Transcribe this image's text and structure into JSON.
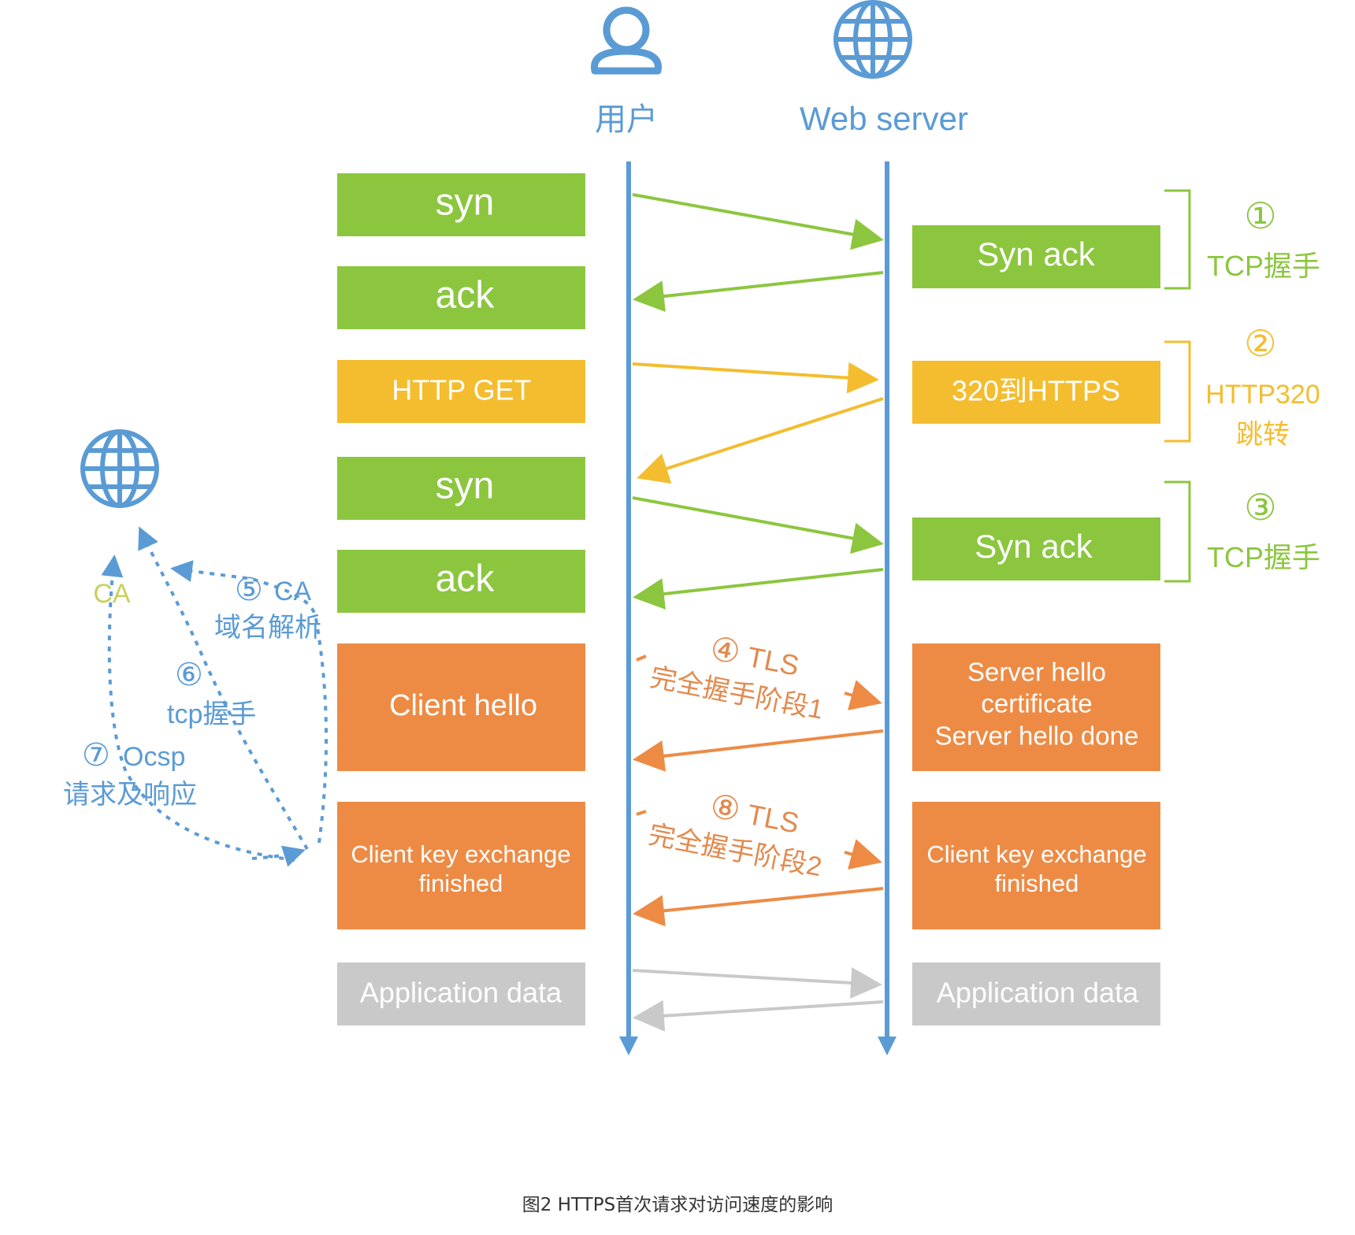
{
  "colors": {
    "blue": "#5B9BD5",
    "green": "#8CC63F",
    "yellow": "#F4BD2F",
    "orange": "#ED8B45",
    "gray": "#C9C9C9",
    "tls_label": "#E28A4E",
    "ca_label": "#C8D15B"
  },
  "actors": {
    "client": {
      "icon": "user-icon",
      "label": "用户"
    },
    "server": {
      "icon": "globe-icon",
      "label": "Web server"
    }
  },
  "ca": {
    "icon": "globe-icon",
    "label": "CA"
  },
  "client_messages": [
    {
      "label": "syn",
      "color": "green"
    },
    {
      "label": "ack",
      "color": "green"
    },
    {
      "label": "HTTP GET",
      "color": "yellow"
    },
    {
      "label": "syn",
      "color": "green"
    },
    {
      "label": "ack",
      "color": "green"
    },
    {
      "label": "Client hello",
      "color": "orange"
    },
    {
      "label_lines": [
        "Client key exchange",
        "finished"
      ],
      "color": "orange"
    },
    {
      "label": "Application data",
      "color": "gray"
    }
  ],
  "server_messages": [
    {
      "label": "Syn ack",
      "color": "green"
    },
    {
      "label": "320到HTTPS",
      "color": "yellow"
    },
    {
      "label": "Syn ack",
      "color": "green"
    },
    {
      "label_lines": [
        "Server hello",
        "certificate",
        "Server hello done"
      ],
      "color": "orange"
    },
    {
      "label_lines": [
        "Client key exchange",
        "finished"
      ],
      "color": "orange"
    },
    {
      "label": "Application data",
      "color": "gray"
    }
  ],
  "phases": [
    {
      "num": "①",
      "label_lines": [
        "TCP握手"
      ],
      "color": "green"
    },
    {
      "num": "②",
      "label_lines": [
        "HTTP320",
        "跳转"
      ],
      "color": "yellow"
    },
    {
      "num": "③",
      "label_lines": [
        "TCP握手"
      ],
      "color": "green"
    }
  ],
  "tls_steps": [
    {
      "num": "④",
      "title": "TLS",
      "subtitle": "完全握手阶段1"
    },
    {
      "num": "⑧",
      "title": "TLS",
      "subtitle": "完全握手阶段2"
    }
  ],
  "ca_steps": [
    {
      "num": "⑤",
      "lines": [
        "CA",
        "域名解析"
      ]
    },
    {
      "num": "⑥",
      "lines": [
        "tcp握手"
      ]
    },
    {
      "num": "⑦",
      "lines": [
        "Ocsp",
        "请求及响应"
      ]
    }
  ],
  "caption": "图2  HTTPS首次请求对访问速度的影响"
}
